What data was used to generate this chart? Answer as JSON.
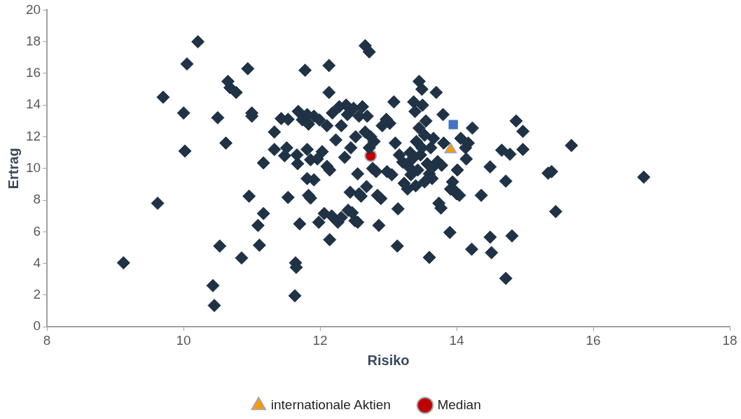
{
  "chart_data": {
    "type": "scatter",
    "xlabel": "Risiko",
    "ylabel": "Ertrag",
    "xlim": [
      8,
      18
    ],
    "ylim": [
      0,
      20
    ],
    "xticks": [
      8,
      10,
      12,
      14,
      16,
      18
    ],
    "yticks": [
      0,
      2,
      4,
      6,
      8,
      10,
      12,
      14,
      16,
      18,
      20
    ],
    "grid": false,
    "legend": "bottom",
    "series": [
      {
        "color": "#203346",
        "marker": "diamond",
        "x": [
          9.12,
          9.62,
          9.7,
          10.0,
          10.02,
          10.05,
          10.21,
          10.5,
          10.53,
          10.43,
          10.45,
          10.65,
          10.68,
          10.77,
          10.62,
          10.85,
          10.94,
          10.96,
          11.0,
          11.0,
          11.09,
          11.11,
          11.17,
          11.17,
          11.33,
          11.33,
          11.43,
          11.48,
          11.51,
          11.53,
          11.53,
          11.64,
          11.65,
          11.63,
          11.66,
          11.68,
          11.7,
          11.67,
          11.74,
          11.78,
          11.81,
          11.83,
          11.81,
          11.81,
          11.83,
          11.86,
          11.86,
          11.91,
          11.91,
          11.96,
          11.98,
          11.99,
          12.03,
          12.06,
          12.1,
          12.1,
          12.13,
          12.13,
          12.14,
          12.14,
          12.17,
          12.18,
          12.23,
          12.26,
          12.28,
          12.31,
          12.31,
          12.36,
          12.38,
          12.4,
          12.41,
          12.44,
          12.45,
          12.47,
          12.49,
          12.51,
          12.52,
          12.55,
          12.57,
          12.6,
          12.55,
          12.57,
          12.62,
          12.66,
          12.68,
          12.69,
          12.72,
          12.74,
          12.77,
          12.66,
          12.72,
          12.79,
          12.82,
          12.84,
          12.86,
          12.89,
          12.91,
          12.97,
          12.98,
          13.02,
          13.05,
          13.08,
          13.1,
          13.13,
          13.14,
          13.16,
          13.21,
          13.23,
          13.28,
          13.3,
          13.32,
          13.33,
          13.35,
          13.37,
          13.39,
          13.4,
          13.41,
          13.43,
          13.45,
          13.45,
          13.47,
          13.49,
          13.49,
          13.5,
          13.53,
          13.53,
          13.55,
          13.57,
          13.6,
          13.6,
          13.62,
          13.64,
          13.66,
          13.67,
          13.7,
          13.72,
          13.74,
          13.77,
          13.78,
          13.8,
          13.81,
          13.9,
          13.91,
          13.94,
          13.96,
          14.0,
          14.01,
          14.04,
          14.06,
          14.13,
          14.14,
          14.17,
          14.23,
          14.22,
          14.36,
          14.49,
          14.49,
          14.51,
          14.66,
          14.72,
          14.72,
          14.78,
          14.81,
          14.87,
          14.97,
          14.97,
          15.34,
          15.39,
          15.45,
          15.68,
          16.74
        ],
        "values": [
          4.04,
          7.8,
          14.5,
          13.5,
          11.1,
          16.6,
          18.0,
          13.2,
          5.1,
          2.6,
          1.35,
          15.5,
          15.1,
          14.8,
          11.6,
          4.35,
          16.3,
          8.25,
          13.5,
          13.3,
          6.4,
          5.15,
          10.35,
          7.15,
          12.3,
          11.2,
          13.15,
          10.8,
          11.3,
          13.1,
          8.17,
          4.04,
          3.75,
          1.96,
          10.85,
          13.6,
          6.5,
          10.3,
          13.07,
          16.2,
          13.4,
          12.8,
          11.2,
          9.36,
          8.3,
          8.13,
          10.55,
          13.3,
          9.28,
          10.6,
          6.6,
          13.06,
          11.06,
          7.15,
          12.7,
          10.13,
          14.8,
          16.5,
          9.9,
          5.5,
          7.0,
          13.5,
          11.8,
          6.6,
          13.9,
          6.9,
          12.7,
          10.7,
          14.0,
          13.4,
          7.36,
          8.5,
          11.3,
          7.2,
          13.8,
          6.7,
          12.0,
          9.66,
          8.4,
          8.25,
          6.6,
          13.3,
          13.9,
          12.3,
          8.85,
          13.3,
          11.3,
          12.0,
          10.0,
          17.75,
          17.36,
          11.7,
          9.8,
          8.3,
          6.4,
          8.1,
          12.7,
          13.1,
          9.8,
          12.85,
          9.6,
          14.2,
          11.6,
          5.1,
          7.45,
          10.85,
          10.4,
          9.06,
          8.7,
          10.1,
          11.0,
          9.6,
          10.6,
          14.2,
          13.6,
          8.9,
          11.7,
          9.9,
          12.55,
          15.5,
          10.85,
          15.0,
          11.3,
          14.0,
          12.1,
          9.15,
          13.0,
          10.3,
          9.66,
          4.38,
          11.3,
          9.36,
          11.9,
          10.17,
          14.8,
          10.43,
          7.8,
          7.5,
          10.2,
          13.4,
          11.6,
          5.96,
          8.7,
          9.15,
          8.64,
          8.4,
          9.9,
          8.3,
          11.9,
          11.3,
          10.6,
          11.6,
          12.55,
          4.9,
          8.3,
          10.1,
          5.66,
          4.68,
          11.15,
          9.2,
          3.06,
          10.9,
          5.74,
          13.0,
          12.34,
          11.2,
          9.7,
          9.8,
          7.28,
          11.45,
          9.45
        ]
      },
      {
        "color": "#4472c4",
        "marker": "square",
        "x": [
          13.95
        ],
        "values": [
          12.77
        ]
      },
      {
        "name": "internationale Aktien",
        "color": "#ff9900",
        "marker": "triangle",
        "x": [
          13.91
        ],
        "values": [
          11.2
        ]
      },
      {
        "name": "Median",
        "color": "#c00000",
        "marker": "circle",
        "x": [
          12.74
        ],
        "values": [
          10.8
        ]
      }
    ]
  }
}
